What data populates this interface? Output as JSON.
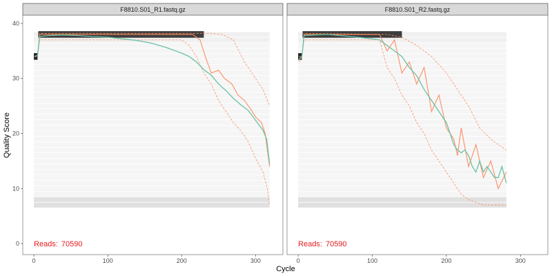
{
  "chart_data": {
    "type": "line",
    "xlabel": "Cycle",
    "ylabel": "Quality Score",
    "xlim": [
      -15,
      337
    ],
    "ylim": [
      -2,
      41.5
    ],
    "x_ticks": [
      0,
      100,
      200,
      300
    ],
    "y_ticks": [
      0,
      10,
      20,
      30,
      40
    ],
    "grid": false,
    "colors": {
      "mean": "#66c2a5",
      "median": "#fc8d62",
      "quartile": "#fc8d62",
      "reads_text": "#e41a1c",
      "strip_fill": "#d9d9d9",
      "panel_border": "#7f7f7f"
    },
    "panels": [
      {
        "strip_label": "F8810.S01_R1.fastq.gz",
        "reads_label": "Reads:",
        "reads_value": "70590",
        "max_cycle": 319,
        "mean": [
          [
            1,
            34
          ],
          [
            5,
            34.2
          ],
          [
            8,
            37.6
          ],
          [
            20,
            37.8
          ],
          [
            40,
            37.9
          ],
          [
            60,
            37.8
          ],
          [
            80,
            37.6
          ],
          [
            100,
            37.5
          ],
          [
            120,
            37.2
          ],
          [
            140,
            36.9
          ],
          [
            160,
            36.4
          ],
          [
            180,
            35.6
          ],
          [
            200,
            34.6
          ],
          [
            210,
            34.0
          ],
          [
            220,
            33
          ],
          [
            230,
            31.6
          ],
          [
            240,
            30.6
          ],
          [
            250,
            29
          ],
          [
            260,
            27.8
          ],
          [
            270,
            26.4
          ],
          [
            280,
            25.2
          ],
          [
            290,
            24.2
          ],
          [
            300,
            22.4
          ],
          [
            305,
            21.5
          ],
          [
            310,
            20.6
          ],
          [
            315,
            19
          ],
          [
            319,
            14.5
          ]
        ],
        "median": [
          [
            1,
            34
          ],
          [
            5,
            34.2
          ],
          [
            8,
            38
          ],
          [
            200,
            38
          ],
          [
            215,
            38
          ],
          [
            225,
            37
          ],
          [
            232,
            34
          ],
          [
            240,
            31
          ],
          [
            250,
            31.5
          ],
          [
            258,
            30
          ],
          [
            268,
            29
          ],
          [
            276,
            27
          ],
          [
            285,
            26
          ],
          [
            293,
            24.5
          ],
          [
            300,
            23
          ],
          [
            308,
            22
          ],
          [
            313,
            20
          ],
          [
            319,
            14
          ]
        ],
        "q25": [
          [
            1,
            34
          ],
          [
            5,
            34
          ],
          [
            8,
            37
          ],
          [
            200,
            37
          ],
          [
            210,
            36
          ],
          [
            220,
            34
          ],
          [
            230,
            31
          ],
          [
            240,
            29
          ],
          [
            250,
            26
          ],
          [
            260,
            24
          ],
          [
            270,
            22
          ],
          [
            280,
            20.5
          ],
          [
            290,
            18.5
          ],
          [
            300,
            15.5
          ],
          [
            310,
            13
          ],
          [
            316,
            10
          ],
          [
            319,
            7
          ]
        ],
        "q75": [
          [
            1,
            34
          ],
          [
            5,
            34
          ],
          [
            8,
            38.2
          ],
          [
            225,
            38.2
          ],
          [
            240,
            38.2
          ],
          [
            255,
            38
          ],
          [
            270,
            37
          ],
          [
            285,
            33
          ],
          [
            300,
            30
          ],
          [
            310,
            28
          ],
          [
            319,
            25
          ]
        ]
      },
      {
        "strip_label": "F8810.S01_R2.fastq.gz",
        "reads_label": "Reads:",
        "reads_value": "70590",
        "max_cycle": 281,
        "mean": [
          [
            1,
            33.5
          ],
          [
            5,
            34
          ],
          [
            8,
            37.8
          ],
          [
            40,
            38
          ],
          [
            80,
            37.5
          ],
          [
            100,
            37.2
          ],
          [
            110,
            37
          ],
          [
            120,
            36
          ],
          [
            130,
            35
          ],
          [
            140,
            34
          ],
          [
            150,
            32
          ],
          [
            160,
            30.5
          ],
          [
            170,
            28
          ],
          [
            180,
            26
          ],
          [
            190,
            24
          ],
          [
            200,
            22
          ],
          [
            205,
            20
          ],
          [
            210,
            18
          ],
          [
            215,
            17
          ],
          [
            220,
            16.5
          ],
          [
            225,
            17
          ],
          [
            230,
            16
          ],
          [
            235,
            14
          ],
          [
            240,
            13
          ],
          [
            245,
            15
          ],
          [
            250,
            13
          ],
          [
            255,
            14
          ],
          [
            260,
            13
          ],
          [
            265,
            12
          ],
          [
            270,
            12
          ],
          [
            275,
            14
          ],
          [
            281,
            11
          ]
        ],
        "median": [
          [
            1,
            33.5
          ],
          [
            5,
            34
          ],
          [
            8,
            38
          ],
          [
            100,
            38
          ],
          [
            110,
            38
          ],
          [
            120,
            35
          ],
          [
            130,
            37
          ],
          [
            140,
            31
          ],
          [
            150,
            33
          ],
          [
            160,
            29
          ],
          [
            170,
            32
          ],
          [
            180,
            24
          ],
          [
            190,
            27
          ],
          [
            200,
            21
          ],
          [
            210,
            19
          ],
          [
            215,
            16
          ],
          [
            220,
            21
          ],
          [
            230,
            14
          ],
          [
            240,
            18
          ],
          [
            250,
            12
          ],
          [
            260,
            15
          ],
          [
            270,
            10
          ],
          [
            281,
            13
          ]
        ],
        "q25": [
          [
            1,
            33
          ],
          [
            5,
            34
          ],
          [
            8,
            37
          ],
          [
            110,
            37
          ],
          [
            120,
            32
          ],
          [
            130,
            30
          ],
          [
            140,
            27
          ],
          [
            150,
            25
          ],
          [
            160,
            22
          ],
          [
            170,
            20
          ],
          [
            180,
            17
          ],
          [
            190,
            15
          ],
          [
            200,
            13
          ],
          [
            210,
            11
          ],
          [
            220,
            9
          ],
          [
            230,
            8
          ],
          [
            240,
            7.5
          ],
          [
            250,
            7
          ],
          [
            260,
            7
          ],
          [
            270,
            7
          ],
          [
            281,
            7
          ]
        ],
        "q75": [
          [
            1,
            34
          ],
          [
            5,
            34
          ],
          [
            8,
            38.2
          ],
          [
            120,
            38
          ],
          [
            140,
            37.5
          ],
          [
            160,
            36
          ],
          [
            180,
            34
          ],
          [
            200,
            31
          ],
          [
            215,
            28
          ],
          [
            230,
            25
          ],
          [
            245,
            21
          ],
          [
            260,
            19
          ],
          [
            270,
            18
          ],
          [
            281,
            17
          ]
        ]
      }
    ]
  }
}
